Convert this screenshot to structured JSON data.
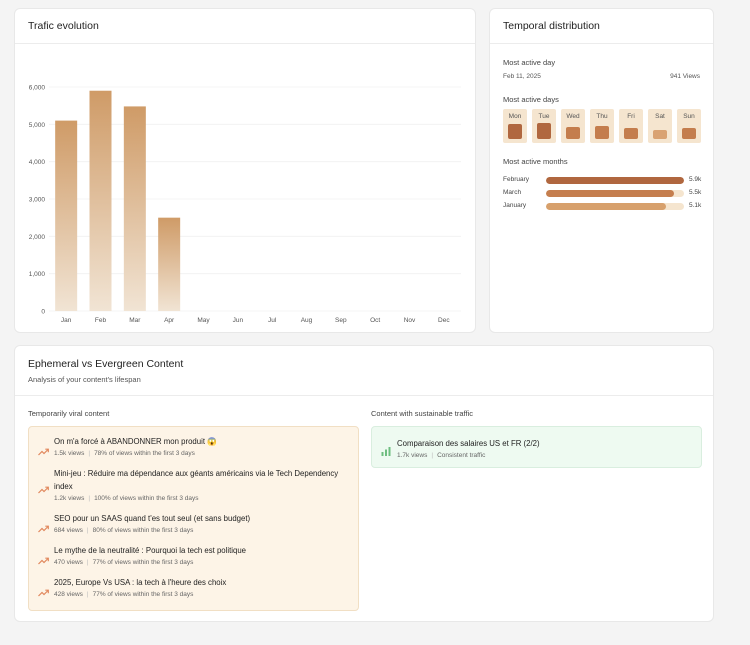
{
  "trafic": {
    "title": "Trafic evolution"
  },
  "chart_data": {
    "type": "bar",
    "categories": [
      "Jan",
      "Feb",
      "Mar",
      "Apr",
      "May",
      "Jun",
      "Jul",
      "Aug",
      "Sep",
      "Oct",
      "Nov",
      "Dec"
    ],
    "values": [
      5100,
      5900,
      5480,
      2500,
      0,
      0,
      0,
      0,
      0,
      0,
      0,
      0
    ],
    "yticks": [
      "0",
      "1,000",
      "2,000",
      "3,000",
      "4,000",
      "5,000",
      "6,000"
    ],
    "ylim": [
      0,
      6000
    ],
    "grid": true,
    "bar_color_top": "#cf9b67",
    "bar_color_bottom": "#f1e4d4"
  },
  "temporal": {
    "title": "Temporal distribution",
    "most_active_day_label": "Most active day",
    "most_active_day_date": "Feb 11, 2025",
    "most_active_day_views": "941 Views",
    "most_active_days_label": "Most active days",
    "days": [
      {
        "name": "Mon",
        "level": 0.75
      },
      {
        "name": "Tue",
        "level": 0.85
      },
      {
        "name": "Wed",
        "level": 0.6
      },
      {
        "name": "Thu",
        "level": 0.62
      },
      {
        "name": "Fri",
        "level": 0.5
      },
      {
        "name": "Sat",
        "level": 0.35
      },
      {
        "name": "Sun",
        "level": 0.52
      }
    ],
    "most_active_months_label": "Most active months",
    "months": [
      {
        "name": "February",
        "value": "5.9k",
        "fraction": 1.0,
        "color": "#b0673f"
      },
      {
        "name": "March",
        "value": "5.5k",
        "fraction": 0.93,
        "color": "#c57e4e"
      },
      {
        "name": "January",
        "value": "5.1k",
        "fraction": 0.87,
        "color": "#d7a06c"
      }
    ]
  },
  "ephemeral": {
    "title": "Ephemeral vs Evergreen Content",
    "subtitle": "Analysis of your content's lifespan",
    "viral_title": "Temporarily viral content",
    "sustainable_title": "Content with sustainable traffic",
    "viral_items": [
      {
        "title": "On m'a forcé à ABANDONNER mon produit 😱",
        "views": "1.5k views",
        "ratio": "78% of views within the first 3 days",
        "lines": 1
      },
      {
        "title": "Mini-jeu : Réduire ma dépendance aux géants américains via le Tech Dependency index",
        "views": "1.2k views",
        "ratio": "100% of views within the first 3 days",
        "lines": 2
      },
      {
        "title": "SEO pour un SAAS quand t'es tout seul (et sans budget)",
        "views": "684 views",
        "ratio": "80% of views within the first 3 days",
        "lines": 1
      },
      {
        "title": "Le mythe de la neutralité : Pourquoi la tech est politique",
        "views": "470 views",
        "ratio": "77% of views within the first 3 days",
        "lines": 1
      },
      {
        "title": "2025, Europe Vs USA : la tech à l'heure des choix",
        "views": "428 views",
        "ratio": "77% of views within the first 3 days",
        "lines": 1
      }
    ],
    "sustainable_items": [
      {
        "title": "Comparaison des salaires US et FR (2/2)",
        "views": "1.7k views",
        "status": "Consistent traffic"
      }
    ]
  },
  "icons": {
    "trend": "trending-up-icon",
    "bars": "bar-chart-icon"
  }
}
